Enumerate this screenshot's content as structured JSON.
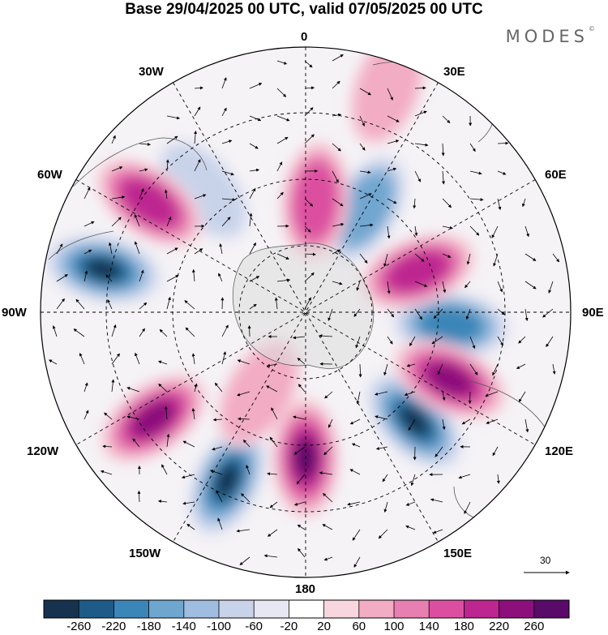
{
  "title": "Base 29/04/2025 00 UTC, valid 07/05/2025 00 UTC",
  "brand": "MODES",
  "brand_mark": "©",
  "map": {
    "projection": "south polar stereographic",
    "longitude_labels": {
      "top": "0",
      "top_left": "30W",
      "top_right": "30E",
      "upper_left": "60W",
      "upper_right": "60E",
      "left": "90W",
      "right": "90E",
      "lower_left": "120W",
      "lower_right": "120E",
      "bottom_left": "150W",
      "bottom_right": "150E",
      "bottom": "180"
    },
    "reference_vector": "30"
  },
  "colorbar": {
    "ticks": [
      "-260",
      "-220",
      "-180",
      "-140",
      "-100",
      "-60",
      "-20",
      "20",
      "60",
      "100",
      "140",
      "180",
      "220",
      "260"
    ],
    "colors": [
      "#17324f",
      "#1e5b88",
      "#3b86b8",
      "#6fa6cf",
      "#9ebde0",
      "#c8d3ea",
      "#e7e7f3",
      "#ffffff",
      "#f7d6de",
      "#f2acc4",
      "#e77fb0",
      "#dc4fa0",
      "#bd2590",
      "#8c0f7c",
      "#5a0a68"
    ]
  },
  "anomalies": {
    "negative": [
      {
        "lon_deg": 95,
        "lat_frac": 0.55,
        "value": -200
      },
      {
        "lon_deg": 135,
        "lat_frac": 0.58,
        "value": -260
      },
      {
        "lon_deg": 30,
        "lat_frac": 0.45,
        "value": -160
      },
      {
        "lon_deg": 205,
        "lat_frac": 0.7,
        "value": -260
      },
      {
        "lon_deg": -78,
        "lat_frac": 0.78,
        "value": -260
      },
      {
        "lon_deg": -40,
        "lat_frac": 0.6,
        "value": -60
      }
    ],
    "positive": [
      {
        "lon_deg": 70,
        "lat_frac": 0.45,
        "value": 180
      },
      {
        "lon_deg": 115,
        "lat_frac": 0.6,
        "value": 220
      },
      {
        "lon_deg": 180,
        "lat_frac": 0.55,
        "value": 260
      },
      {
        "lon_deg": -125,
        "lat_frac": 0.7,
        "value": 220
      },
      {
        "lon_deg": -55,
        "lat_frac": 0.72,
        "value": 200
      },
      {
        "lon_deg": 5,
        "lat_frac": 0.42,
        "value": 140
      },
      {
        "lon_deg": 20,
        "lat_frac": 0.9,
        "value": 60
      },
      {
        "lon_deg": -150,
        "lat_frac": 0.35,
        "value": 60
      }
    ]
  }
}
